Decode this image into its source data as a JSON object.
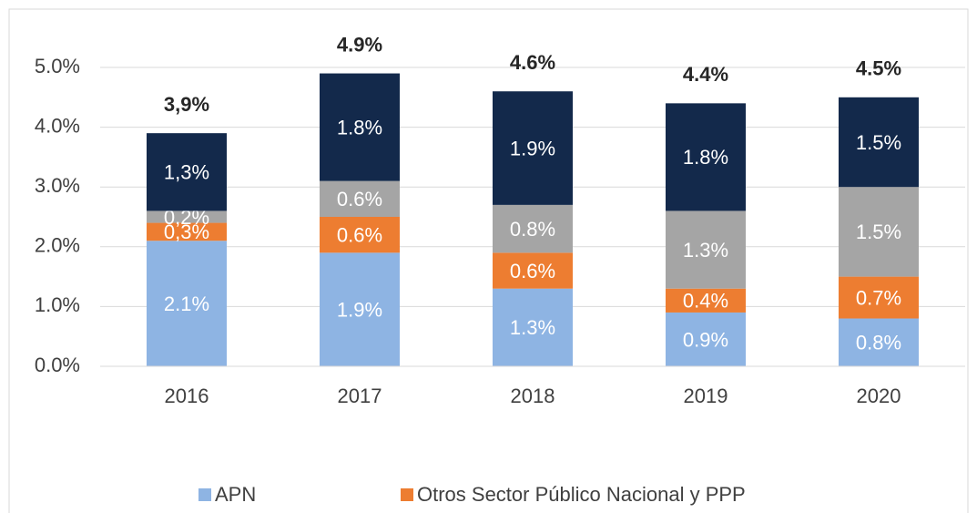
{
  "chart_data": {
    "type": "stacked_bar",
    "categories": [
      "2016",
      "2017",
      "2018",
      "2019",
      "2020"
    ],
    "series": [
      {
        "name": "APN",
        "color": "#8eb4e3",
        "values": [
          2.1,
          1.9,
          1.3,
          0.9,
          0.8
        ],
        "value_labels": [
          "2.1%",
          "1.9%",
          "1.3%",
          "0.9%",
          "0.8%"
        ]
      },
      {
        "name": "Otros Sector Público Nacional y PPP",
        "color": "#ed7d31",
        "values": [
          0.3,
          0.6,
          0.6,
          0.4,
          0.7
        ],
        "value_labels": [
          "0,3%",
          "0.6%",
          "0.6%",
          "0.4%",
          "0.7%"
        ]
      },
      {
        "color": "#a5a5a5",
        "values": [
          0.2,
          0.6,
          0.8,
          1.3,
          1.5
        ],
        "value_labels": [
          "0,2%",
          "0.6%",
          "0.8%",
          "1.3%",
          "1.5%"
        ]
      },
      {
        "color": "#13294b",
        "values": [
          1.3,
          1.8,
          1.9,
          1.8,
          1.5
        ],
        "value_labels": [
          "1,3%",
          "1.8%",
          "1.9%",
          "1.8%",
          "1.5%"
        ]
      }
    ],
    "totals": [
      3.9,
      4.9,
      4.6,
      4.4,
      4.5
    ],
    "totals_labels": [
      "3,9%",
      "4.9%",
      "4.6%",
      "4.4%",
      "4.5%"
    ],
    "ylim": [
      0,
      5.0
    ],
    "yticks": [
      {
        "value": 0,
        "label": "0.0%"
      },
      {
        "value": 1,
        "label": "1.0%"
      },
      {
        "value": 2,
        "label": "2.0%"
      },
      {
        "value": 3,
        "label": "3.0%"
      },
      {
        "value": 4,
        "label": "4.0%"
      },
      {
        "value": 5,
        "label": "5.0%"
      }
    ],
    "grid": true
  }
}
